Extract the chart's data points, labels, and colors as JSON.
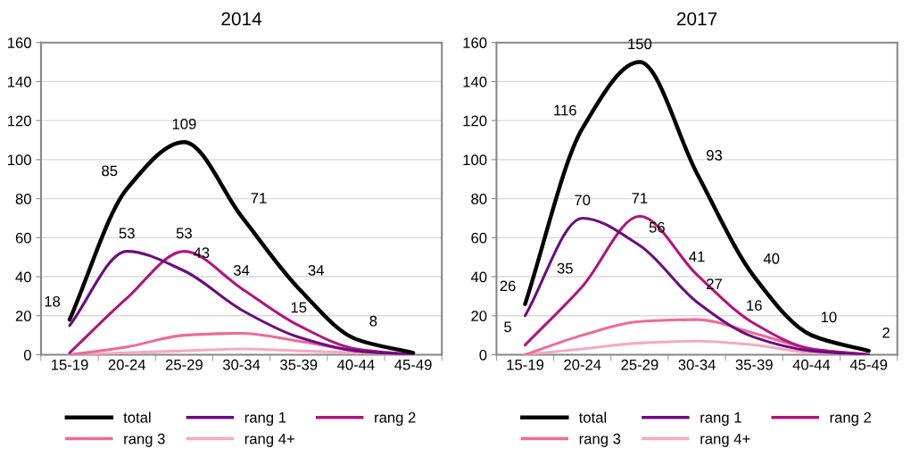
{
  "chart_data": [
    {
      "type": "line",
      "title": "2014",
      "categories": [
        "15-19",
        "20-24",
        "25-29",
        "30-34",
        "35-39",
        "40-44",
        "45-49"
      ],
      "ylim": [
        0,
        160
      ],
      "yticks": [
        0,
        20,
        40,
        60,
        80,
        100,
        120,
        140,
        160
      ],
      "grid": "y",
      "legend": "bottom",
      "marker": "none",
      "line_style": "solid",
      "series": [
        {
          "name": "total",
          "color": "#000000",
          "values": [
            18,
            85,
            109,
            71,
            34,
            8,
            1
          ],
          "value_labels": [
            "18",
            "85",
            "109",
            "71",
            "34",
            "8",
            null
          ]
        },
        {
          "name": "rang 1",
          "color": "#6b0d7e",
          "values": [
            15,
            53,
            43,
            23,
            9,
            2,
            0
          ],
          "value_labels": [
            null,
            "53",
            "43",
            null,
            null,
            null,
            null
          ]
        },
        {
          "name": "rang 2",
          "color": "#b3127f",
          "values": [
            1,
            29,
            53,
            34,
            15,
            3,
            0
          ],
          "value_labels": [
            null,
            null,
            "53",
            "34",
            "15",
            null,
            null
          ]
        },
        {
          "name": "rang 3",
          "color": "#ee6a9a",
          "values": [
            0,
            4,
            10,
            11,
            7,
            2,
            0
          ]
        },
        {
          "name": "rang 4+",
          "color": "#f5a9c2",
          "values": [
            0,
            1,
            2,
            3,
            2,
            1,
            0
          ]
        }
      ]
    },
    {
      "type": "line",
      "title": "2017",
      "categories": [
        "15-19",
        "20-24",
        "25-29",
        "30-34",
        "35-39",
        "40-44",
        "45-49"
      ],
      "ylim": [
        0,
        160
      ],
      "yticks": [
        0,
        20,
        40,
        60,
        80,
        100,
        120,
        140,
        160
      ],
      "grid": "y",
      "legend": "bottom",
      "marker": "none",
      "line_style": "solid",
      "series": [
        {
          "name": "total",
          "color": "#000000",
          "values": [
            26,
            116,
            150,
            93,
            40,
            10,
            2
          ],
          "value_labels": [
            "26",
            "116",
            "150",
            "93",
            "40",
            "10",
            "2"
          ]
        },
        {
          "name": "rang 1",
          "color": "#6b0d7e",
          "values": [
            20,
            70,
            56,
            27,
            9,
            2,
            0
          ],
          "value_labels": [
            null,
            "70",
            "56",
            "27",
            null,
            null,
            null
          ]
        },
        {
          "name": "rang 2",
          "color": "#b3127f",
          "values": [
            5,
            35,
            71,
            41,
            16,
            3,
            0
          ],
          "value_labels": [
            "5",
            "35",
            "71",
            "41",
            "16",
            null,
            null
          ]
        },
        {
          "name": "rang 3",
          "color": "#ee6a9a",
          "values": [
            0,
            10,
            17,
            18,
            11,
            3,
            0
          ]
        },
        {
          "name": "rang 4+",
          "color": "#f5a9c2",
          "values": [
            0,
            3,
            6,
            7,
            5,
            1,
            0
          ]
        }
      ]
    }
  ]
}
